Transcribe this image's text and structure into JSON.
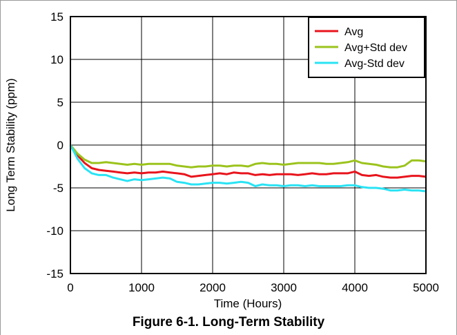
{
  "caption": "Figure 6-1. Long-Term Stability",
  "chart_data": {
    "type": "line",
    "title": "",
    "xlabel": "Time (Hours)",
    "ylabel": "Long Term Stability (ppm)",
    "xlim": [
      0,
      5000
    ],
    "ylim": [
      -15,
      15
    ],
    "xticks": [
      0,
      1000,
      2000,
      3000,
      4000,
      5000
    ],
    "yticks": [
      15,
      10,
      5,
      0,
      -5,
      -10,
      -15
    ],
    "grid": true,
    "legend_position": "top-right",
    "x": [
      0,
      50,
      100,
      200,
      300,
      400,
      500,
      600,
      700,
      800,
      900,
      1000,
      1100,
      1200,
      1300,
      1400,
      1500,
      1600,
      1700,
      1800,
      1900,
      2000,
      2100,
      2200,
      2300,
      2400,
      2500,
      2600,
      2700,
      2800,
      2900,
      3000,
      3100,
      3200,
      3300,
      3400,
      3500,
      3600,
      3700,
      3800,
      3900,
      4000,
      4100,
      4200,
      4300,
      4400,
      4500,
      4600,
      4700,
      4800,
      4900,
      5000
    ],
    "series": [
      {
        "name": "Avg",
        "color": "#e8141c",
        "values": [
          0,
          -0.6,
          -1.2,
          -2.1,
          -2.7,
          -2.9,
          -3.0,
          -3.1,
          -3.2,
          -3.3,
          -3.2,
          -3.3,
          -3.2,
          -3.2,
          -3.1,
          -3.2,
          -3.3,
          -3.4,
          -3.7,
          -3.6,
          -3.5,
          -3.4,
          -3.3,
          -3.4,
          -3.2,
          -3.3,
          -3.3,
          -3.5,
          -3.4,
          -3.5,
          -3.4,
          -3.4,
          -3.4,
          -3.5,
          -3.4,
          -3.3,
          -3.4,
          -3.4,
          -3.3,
          -3.3,
          -3.3,
          -3.1,
          -3.5,
          -3.6,
          -3.5,
          -3.7,
          -3.8,
          -3.8,
          -3.7,
          -3.6,
          -3.6,
          -3.7
        ]
      },
      {
        "name": "Avg+Std dev",
        "color": "#9bc31c",
        "values": [
          0,
          -0.5,
          -1.0,
          -1.7,
          -2.1,
          -2.1,
          -2.0,
          -2.1,
          -2.2,
          -2.3,
          -2.2,
          -2.3,
          -2.2,
          -2.2,
          -2.2,
          -2.2,
          -2.4,
          -2.5,
          -2.6,
          -2.5,
          -2.5,
          -2.4,
          -2.4,
          -2.5,
          -2.4,
          -2.4,
          -2.5,
          -2.2,
          -2.1,
          -2.2,
          -2.2,
          -2.3,
          -2.2,
          -2.1,
          -2.1,
          -2.1,
          -2.1,
          -2.2,
          -2.2,
          -2.1,
          -2.0,
          -1.8,
          -2.1,
          -2.2,
          -2.3,
          -2.5,
          -2.6,
          -2.6,
          -2.4,
          -1.8,
          -1.8,
          -1.9
        ]
      },
      {
        "name": "Avg-Std dev",
        "color": "#29e3f4",
        "values": [
          0,
          -0.8,
          -1.6,
          -2.7,
          -3.3,
          -3.5,
          -3.5,
          -3.8,
          -4.0,
          -4.2,
          -4.0,
          -4.1,
          -4.0,
          -3.9,
          -3.8,
          -3.9,
          -4.3,
          -4.4,
          -4.6,
          -4.6,
          -4.5,
          -4.4,
          -4.4,
          -4.5,
          -4.4,
          -4.3,
          -4.4,
          -4.8,
          -4.6,
          -4.7,
          -4.7,
          -4.8,
          -4.7,
          -4.7,
          -4.8,
          -4.7,
          -4.8,
          -4.8,
          -4.8,
          -4.8,
          -4.7,
          -4.7,
          -4.9,
          -5.0,
          -5.0,
          -5.1,
          -5.3,
          -5.3,
          -5.2,
          -5.3,
          -5.3,
          -5.4
        ]
      }
    ]
  }
}
